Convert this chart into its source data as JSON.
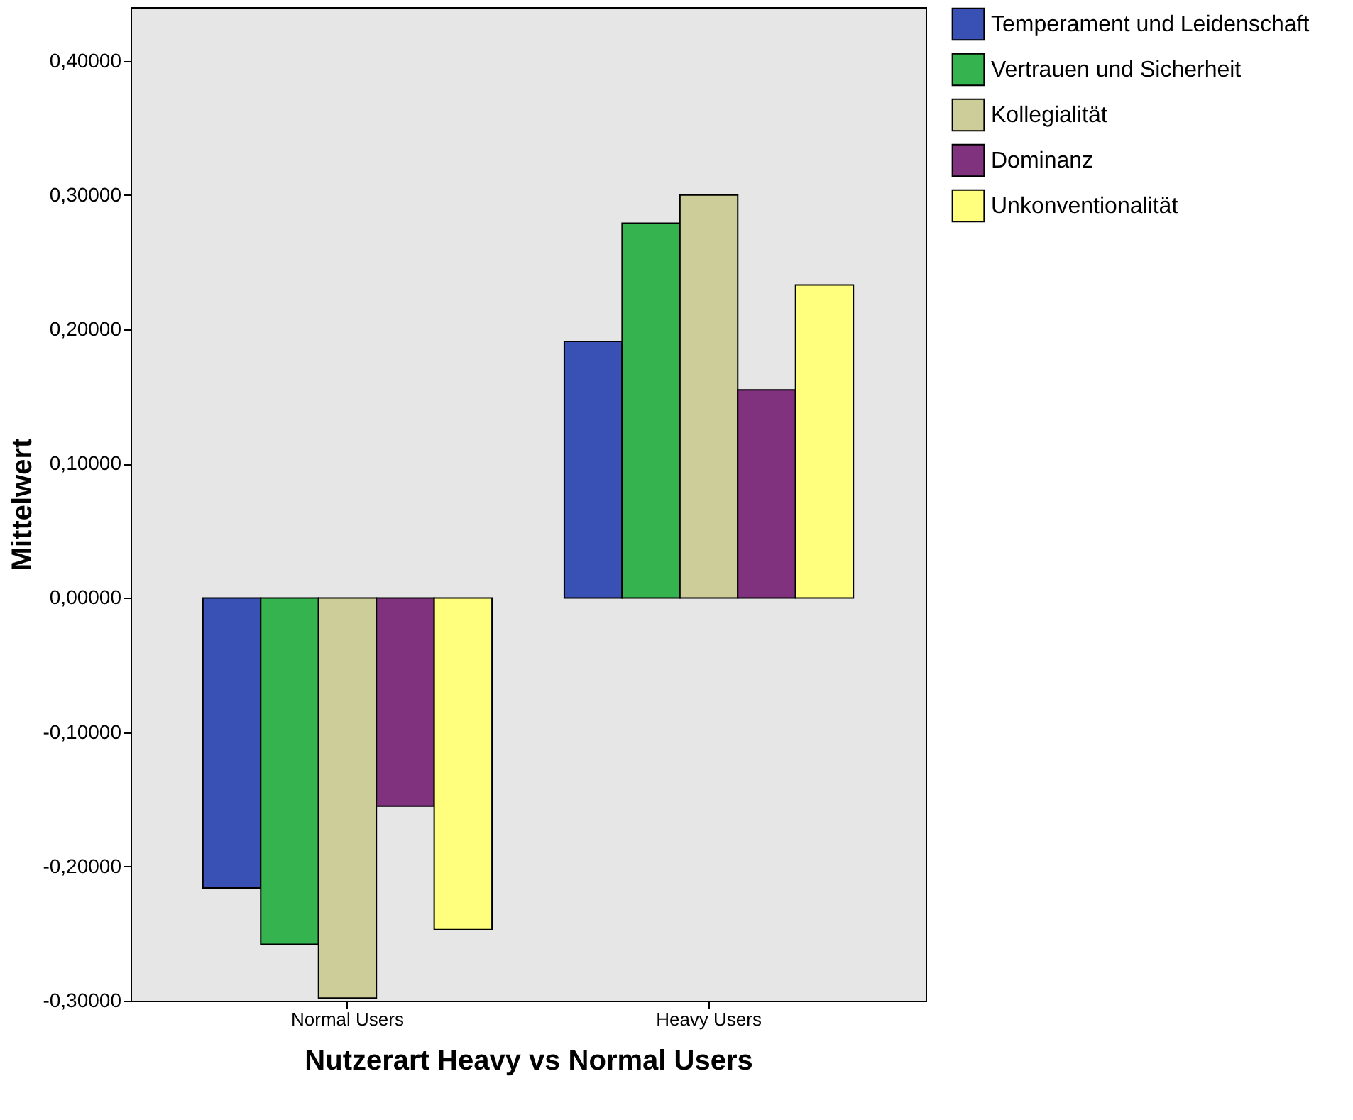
{
  "chart_data": {
    "type": "bar",
    "xlabel": "Nutzerart Heavy vs Normal Users",
    "ylabel": "Mittelwert",
    "categories": [
      "Normal Users",
      "Heavy Users"
    ],
    "series": [
      {
        "name": "Temperament und Leidenschaft",
        "color": "#3950b4",
        "values": [
          -0.216,
          0.191
        ]
      },
      {
        "name": "Vertrauen und Sicherheit",
        "color": "#34b34e",
        "values": [
          -0.258,
          0.279
        ]
      },
      {
        "name": "Kollegialität",
        "color": "#cdcd99",
        "values": [
          -0.298,
          0.3
        ]
      },
      {
        "name": "Dominanz",
        "color": "#80327f",
        "values": [
          -0.155,
          0.155
        ]
      },
      {
        "name": "Unkonventionalität",
        "color": "#ffff7d",
        "values": [
          -0.247,
          0.233
        ]
      }
    ],
    "ylim": [
      -0.3,
      0.44
    ],
    "yticks": [
      {
        "value": -0.3,
        "label": "-0,30000"
      },
      {
        "value": -0.2,
        "label": "-0,20000"
      },
      {
        "value": -0.1,
        "label": "-0,10000"
      },
      {
        "value": 0,
        "label": "0,00000"
      },
      {
        "value": 0.1,
        "label": "0,10000"
      },
      {
        "value": 0.2,
        "label": "0,20000"
      },
      {
        "value": 0.3,
        "label": "0,30000"
      },
      {
        "value": 0.4,
        "label": "0,40000"
      }
    ],
    "grid": false,
    "legend": "top right"
  }
}
